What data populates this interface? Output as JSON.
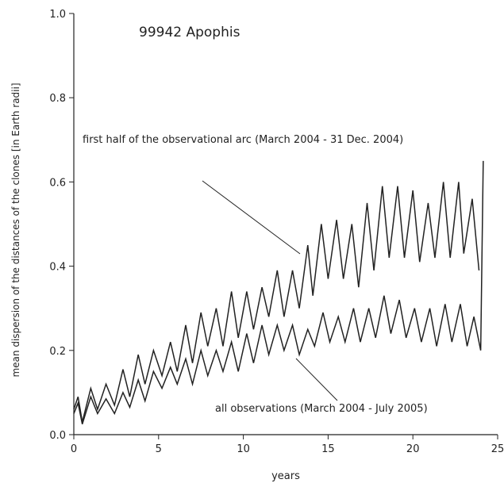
{
  "chart_data": {
    "type": "line",
    "title": "99942 Apophis",
    "x_label": "years",
    "y_label": "mean dispersion of the distances of the clones [in Earth radii]",
    "xlim": [
      0,
      25
    ],
    "ylim": [
      0,
      1
    ],
    "xticks": [
      0,
      5,
      10,
      15,
      20,
      25
    ],
    "yticks": [
      {
        "value": 0,
        "label": "0.0"
      },
      {
        "value": 0.2,
        "label": "0.2"
      },
      {
        "value": 0.4,
        "label": "0.4"
      },
      {
        "value": 0.6,
        "label": "0.6"
      },
      {
        "value": 0.8,
        "label": "0.8"
      },
      {
        "value": 1,
        "label": "1.0"
      }
    ],
    "series": [
      {
        "name": "first half of the observational arc  (March 2004 - 31 Dec. 2004)",
        "color": "#222222",
        "x": [
          0,
          0.25,
          0.5,
          1.0,
          1.4,
          1.9,
          2.4,
          2.9,
          3.3,
          3.8,
          4.2,
          4.7,
          5.2,
          5.7,
          6.1,
          6.6,
          7.0,
          7.5,
          7.9,
          8.4,
          8.8,
          9.3,
          9.7,
          10.2,
          10.6,
          11.1,
          11.5,
          12.0,
          12.4,
          12.9,
          13.3,
          13.8,
          14.1,
          14.6,
          15.0,
          15.5,
          15.9,
          16.4,
          16.8,
          17.3,
          17.7,
          18.2,
          18.6,
          19.1,
          19.5,
          20.0,
          20.4,
          20.9,
          21.3,
          21.8,
          22.2,
          22.7,
          23.0,
          23.5,
          23.9
        ],
        "values": [
          0.06,
          0.09,
          0.03,
          0.11,
          0.06,
          0.12,
          0.07,
          0.155,
          0.09,
          0.19,
          0.12,
          0.2,
          0.14,
          0.22,
          0.15,
          0.26,
          0.17,
          0.29,
          0.21,
          0.3,
          0.21,
          0.34,
          0.23,
          0.34,
          0.25,
          0.35,
          0.28,
          0.39,
          0.28,
          0.39,
          0.3,
          0.45,
          0.33,
          0.5,
          0.37,
          0.51,
          0.37,
          0.5,
          0.35,
          0.55,
          0.39,
          0.59,
          0.42,
          0.59,
          0.42,
          0.58,
          0.41,
          0.55,
          0.42,
          0.6,
          0.42,
          0.6,
          0.43,
          0.56,
          0.39
        ]
      },
      {
        "name": "all observations (March 2004 - July 2005)",
        "color": "#222222",
        "x": [
          0,
          0.25,
          0.5,
          1.0,
          1.4,
          1.9,
          2.4,
          2.9,
          3.3,
          3.8,
          4.2,
          4.7,
          5.2,
          5.7,
          6.1,
          6.6,
          7.0,
          7.5,
          7.9,
          8.4,
          8.8,
          9.3,
          9.7,
          10.2,
          10.6,
          11.1,
          11.5,
          12.0,
          12.4,
          12.9,
          13.3,
          13.8,
          14.2,
          14.7,
          15.1,
          15.6,
          16.0,
          16.5,
          16.9,
          17.4,
          17.8,
          18.3,
          18.7,
          19.2,
          19.6,
          20.1,
          20.5,
          21.0,
          21.4,
          21.9,
          22.3,
          22.8,
          23.2,
          23.6,
          24.0,
          24.15
        ],
        "values": [
          0.05,
          0.075,
          0.025,
          0.09,
          0.05,
          0.085,
          0.05,
          0.1,
          0.065,
          0.13,
          0.08,
          0.15,
          0.11,
          0.16,
          0.12,
          0.18,
          0.12,
          0.2,
          0.14,
          0.2,
          0.15,
          0.22,
          0.15,
          0.24,
          0.17,
          0.26,
          0.19,
          0.26,
          0.2,
          0.26,
          0.19,
          0.25,
          0.21,
          0.29,
          0.22,
          0.28,
          0.22,
          0.3,
          0.22,
          0.3,
          0.23,
          0.33,
          0.24,
          0.32,
          0.23,
          0.3,
          0.22,
          0.3,
          0.21,
          0.31,
          0.22,
          0.31,
          0.21,
          0.28,
          0.2,
          0.65
        ]
      }
    ]
  }
}
